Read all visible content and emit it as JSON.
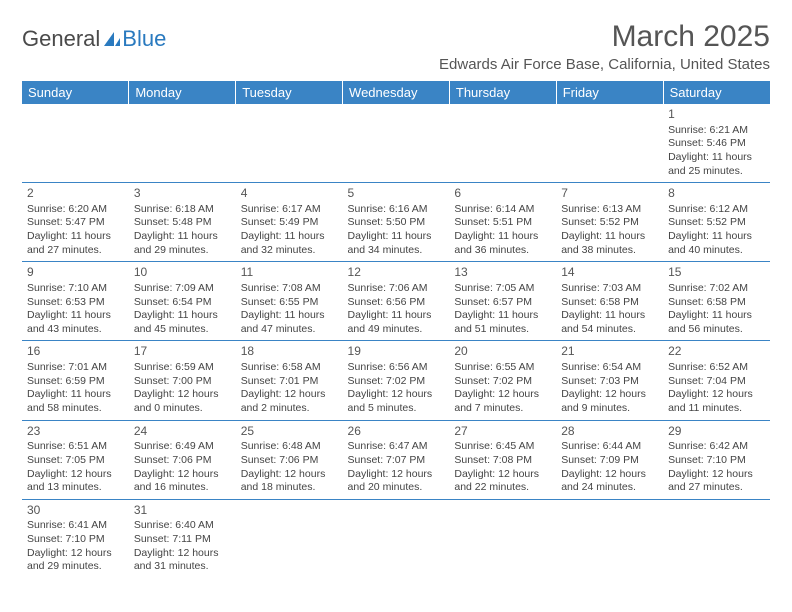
{
  "logo": {
    "text1": "General",
    "text2": "Blue"
  },
  "title": "March 2025",
  "subtitle": "Edwards Air Force Base, California, United States",
  "colors": {
    "header_bg": "#3a84c5",
    "header_fg": "#ffffff",
    "border": "#3a84c5",
    "text": "#444444",
    "title": "#555555"
  },
  "day_headers": [
    "Sunday",
    "Monday",
    "Tuesday",
    "Wednesday",
    "Thursday",
    "Friday",
    "Saturday"
  ],
  "weeks": [
    [
      null,
      null,
      null,
      null,
      null,
      null,
      {
        "n": "1",
        "sr": "6:21 AM",
        "ss": "5:46 PM",
        "dl": "11 hours and 25 minutes."
      }
    ],
    [
      {
        "n": "2",
        "sr": "6:20 AM",
        "ss": "5:47 PM",
        "dl": "11 hours and 27 minutes."
      },
      {
        "n": "3",
        "sr": "6:18 AM",
        "ss": "5:48 PM",
        "dl": "11 hours and 29 minutes."
      },
      {
        "n": "4",
        "sr": "6:17 AM",
        "ss": "5:49 PM",
        "dl": "11 hours and 32 minutes."
      },
      {
        "n": "5",
        "sr": "6:16 AM",
        "ss": "5:50 PM",
        "dl": "11 hours and 34 minutes."
      },
      {
        "n": "6",
        "sr": "6:14 AM",
        "ss": "5:51 PM",
        "dl": "11 hours and 36 minutes."
      },
      {
        "n": "7",
        "sr": "6:13 AM",
        "ss": "5:52 PM",
        "dl": "11 hours and 38 minutes."
      },
      {
        "n": "8",
        "sr": "6:12 AM",
        "ss": "5:52 PM",
        "dl": "11 hours and 40 minutes."
      }
    ],
    [
      {
        "n": "9",
        "sr": "7:10 AM",
        "ss": "6:53 PM",
        "dl": "11 hours and 43 minutes."
      },
      {
        "n": "10",
        "sr": "7:09 AM",
        "ss": "6:54 PM",
        "dl": "11 hours and 45 minutes."
      },
      {
        "n": "11",
        "sr": "7:08 AM",
        "ss": "6:55 PM",
        "dl": "11 hours and 47 minutes."
      },
      {
        "n": "12",
        "sr": "7:06 AM",
        "ss": "6:56 PM",
        "dl": "11 hours and 49 minutes."
      },
      {
        "n": "13",
        "sr": "7:05 AM",
        "ss": "6:57 PM",
        "dl": "11 hours and 51 minutes."
      },
      {
        "n": "14",
        "sr": "7:03 AM",
        "ss": "6:58 PM",
        "dl": "11 hours and 54 minutes."
      },
      {
        "n": "15",
        "sr": "7:02 AM",
        "ss": "6:58 PM",
        "dl": "11 hours and 56 minutes."
      }
    ],
    [
      {
        "n": "16",
        "sr": "7:01 AM",
        "ss": "6:59 PM",
        "dl": "11 hours and 58 minutes."
      },
      {
        "n": "17",
        "sr": "6:59 AM",
        "ss": "7:00 PM",
        "dl": "12 hours and 0 minutes."
      },
      {
        "n": "18",
        "sr": "6:58 AM",
        "ss": "7:01 PM",
        "dl": "12 hours and 2 minutes."
      },
      {
        "n": "19",
        "sr": "6:56 AM",
        "ss": "7:02 PM",
        "dl": "12 hours and 5 minutes."
      },
      {
        "n": "20",
        "sr": "6:55 AM",
        "ss": "7:02 PM",
        "dl": "12 hours and 7 minutes."
      },
      {
        "n": "21",
        "sr": "6:54 AM",
        "ss": "7:03 PM",
        "dl": "12 hours and 9 minutes."
      },
      {
        "n": "22",
        "sr": "6:52 AM",
        "ss": "7:04 PM",
        "dl": "12 hours and 11 minutes."
      }
    ],
    [
      {
        "n": "23",
        "sr": "6:51 AM",
        "ss": "7:05 PM",
        "dl": "12 hours and 13 minutes."
      },
      {
        "n": "24",
        "sr": "6:49 AM",
        "ss": "7:06 PM",
        "dl": "12 hours and 16 minutes."
      },
      {
        "n": "25",
        "sr": "6:48 AM",
        "ss": "7:06 PM",
        "dl": "12 hours and 18 minutes."
      },
      {
        "n": "26",
        "sr": "6:47 AM",
        "ss": "7:07 PM",
        "dl": "12 hours and 20 minutes."
      },
      {
        "n": "27",
        "sr": "6:45 AM",
        "ss": "7:08 PM",
        "dl": "12 hours and 22 minutes."
      },
      {
        "n": "28",
        "sr": "6:44 AM",
        "ss": "7:09 PM",
        "dl": "12 hours and 24 minutes."
      },
      {
        "n": "29",
        "sr": "6:42 AM",
        "ss": "7:10 PM",
        "dl": "12 hours and 27 minutes."
      }
    ],
    [
      {
        "n": "30",
        "sr": "6:41 AM",
        "ss": "7:10 PM",
        "dl": "12 hours and 29 minutes."
      },
      {
        "n": "31",
        "sr": "6:40 AM",
        "ss": "7:11 PM",
        "dl": "12 hours and 31 minutes."
      },
      null,
      null,
      null,
      null,
      null
    ]
  ],
  "labels": {
    "sunrise": "Sunrise:",
    "sunset": "Sunset:",
    "daylight": "Daylight:"
  }
}
